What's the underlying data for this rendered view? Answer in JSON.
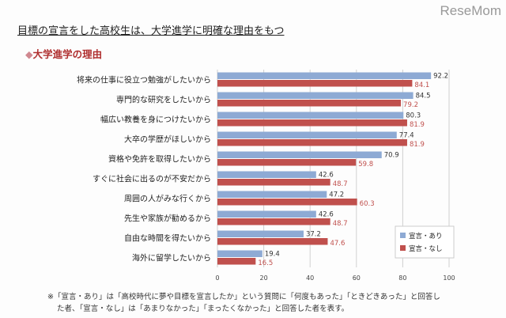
{
  "logo": "ReseMom",
  "title": "目標の宣言をした高校生は、大学進学に明確な理由をもつ",
  "subtitle_marker": "◆",
  "subtitle": "大学進学の理由",
  "note_line1": "※「宣言・あり」は「高校時代に夢や目標を宣言したか」という質問に「何度もあった」「ときどきあった」と回答し",
  "note_line2": "た者、「宣言・なし」は「あまりなかった」「まったくなかった」と回答した者を表す。",
  "chart_data": {
    "type": "bar",
    "orientation": "horizontal",
    "categories": [
      "将来の仕事に役立つ勉強がしたいから",
      "専門的な研究をしたいから",
      "幅広い教養を身につけたいから",
      "大卒の学歴がほしいから",
      "資格や免許を取得したいから",
      "すぐに社会に出るのが不安だから",
      "周囲の人がみな行くから",
      "先生や家族が勧めるから",
      "自由な時間を得たいから",
      "海外に留学したいから"
    ],
    "series": [
      {
        "name": "宣言・あり",
        "color": "#8eaad4",
        "label_color": "#333333",
        "values": [
          92.2,
          84.5,
          80.3,
          77.4,
          70.9,
          42.6,
          47.2,
          42.6,
          37.2,
          19.4
        ]
      },
      {
        "name": "宣言・なし",
        "color": "#c0504d",
        "label_color": "#c0504d",
        "values": [
          84.1,
          79.2,
          81.9,
          81.9,
          59.8,
          48.7,
          60.3,
          48.7,
          47.6,
          16.5
        ]
      }
    ],
    "xlim": [
      0,
      100
    ],
    "xticks": [
      0,
      20,
      40,
      60,
      80,
      100
    ],
    "grid": true,
    "legend": "bottom-right"
  }
}
